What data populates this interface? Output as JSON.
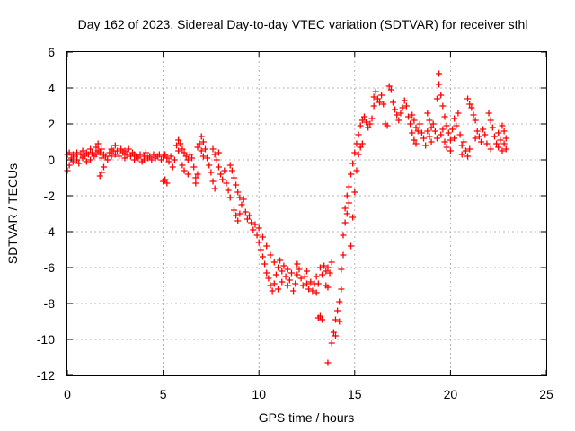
{
  "chart_data": {
    "type": "scatter",
    "title": "Day 162 of 2023, Sidereal Day-to-day VTEC variation (SDTVAR) for receiver sthl",
    "xlabel": "GPS time / hours",
    "ylabel": "SDTVAR / TECUs",
    "xlim": [
      0,
      25
    ],
    "ylim": [
      -12,
      6
    ],
    "xticks": [
      0,
      5,
      10,
      15,
      20,
      25
    ],
    "xtick_labels": [
      "0",
      "5",
      "10",
      "15",
      "20",
      "25"
    ],
    "yticks": [
      -12,
      -10,
      -8,
      -6,
      -4,
      -2,
      0,
      2,
      4,
      6
    ],
    "ytick_labels": [
      "-12",
      "-10",
      "-8",
      "-6",
      "-4",
      "-2",
      "0",
      "2",
      "4",
      "6"
    ],
    "grid": true,
    "marker": "+",
    "color": "#ff0000",
    "series": [
      {
        "name": "sthl",
        "points": [
          [
            0.0,
            0.3
          ],
          [
            0.0,
            -0.6
          ],
          [
            0.1,
            0.4
          ],
          [
            0.1,
            -0.3
          ],
          [
            0.2,
            0.1
          ],
          [
            0.3,
            0.3
          ],
          [
            0.3,
            -0.1
          ],
          [
            0.4,
            0.2
          ],
          [
            0.5,
            0.4
          ],
          [
            0.5,
            0.0
          ],
          [
            0.6,
            -0.2
          ],
          [
            0.7,
            0.3
          ],
          [
            0.8,
            0.1
          ],
          [
            0.8,
            0.5
          ],
          [
            0.9,
            0.2
          ],
          [
            1.0,
            0.4
          ],
          [
            1.0,
            -0.1
          ],
          [
            1.1,
            0.3
          ],
          [
            1.2,
            0.6
          ],
          [
            1.2,
            0.0
          ],
          [
            1.3,
            0.4
          ],
          [
            1.4,
            0.2
          ],
          [
            1.5,
            0.7
          ],
          [
            1.5,
            0.3
          ],
          [
            1.6,
            0.5
          ],
          [
            1.6,
            0.9
          ],
          [
            1.7,
            0.4
          ],
          [
            1.8,
            0.6
          ],
          [
            1.8,
            0.1
          ],
          [
            1.9,
            0.3
          ],
          [
            1.8,
            -0.7
          ],
          [
            1.9,
            -0.4
          ],
          [
            1.7,
            -0.9
          ],
          [
            2.0,
            0.2
          ],
          [
            2.1,
            0.0
          ],
          [
            2.2,
            0.4
          ],
          [
            2.3,
            0.6
          ],
          [
            2.3,
            0.2
          ],
          [
            2.4,
            0.5
          ],
          [
            2.5,
            0.3
          ],
          [
            2.5,
            0.8
          ],
          [
            2.6,
            0.5
          ],
          [
            2.7,
            0.2
          ],
          [
            2.8,
            0.6
          ],
          [
            2.9,
            0.4
          ],
          [
            3.0,
            0.5
          ],
          [
            3.0,
            0.1
          ],
          [
            3.1,
            0.3
          ],
          [
            3.2,
            0.6
          ],
          [
            3.3,
            0.2
          ],
          [
            3.4,
            0.4
          ],
          [
            3.5,
            0.0
          ],
          [
            3.5,
            0.3
          ],
          [
            3.6,
            0.2
          ],
          [
            3.7,
            0.1
          ],
          [
            3.8,
            0.3
          ],
          [
            3.9,
            -0.1
          ],
          [
            4.0,
            0.2
          ],
          [
            4.0,
            0.0
          ],
          [
            4.1,
            0.4
          ],
          [
            4.2,
            0.1
          ],
          [
            4.3,
            0.2
          ],
          [
            4.4,
            0.0
          ],
          [
            4.5,
            0.3
          ],
          [
            4.6,
            0.1
          ],
          [
            4.7,
            0.2
          ],
          [
            4.8,
            0.3
          ],
          [
            4.9,
            0.0
          ],
          [
            5.0,
            0.2
          ],
          [
            5.1,
            0.3
          ],
          [
            5.2,
            0.1
          ],
          [
            5.3,
            -0.1
          ],
          [
            5.4,
            0.2
          ],
          [
            5.0,
            -1.2
          ],
          [
            5.1,
            -1.1
          ],
          [
            5.2,
            -1.3
          ],
          [
            5.5,
            -0.4
          ],
          [
            5.6,
            0.0
          ],
          [
            5.7,
            0.8
          ],
          [
            5.8,
            1.1
          ],
          [
            5.8,
            0.5
          ],
          [
            5.9,
            0.9
          ],
          [
            6.0,
            0.6
          ],
          [
            6.0,
            -0.3
          ],
          [
            6.1,
            0.4
          ],
          [
            6.1,
            -0.6
          ],
          [
            6.2,
            0.2
          ],
          [
            6.3,
            0.0
          ],
          [
            6.3,
            -0.8
          ],
          [
            6.4,
            0.3
          ],
          [
            6.5,
            0.1
          ],
          [
            6.6,
            -0.4
          ],
          [
            6.7,
            -1.0
          ],
          [
            6.7,
            -1.3
          ],
          [
            6.8,
            -0.8
          ],
          [
            6.8,
            0.7
          ],
          [
            6.9,
            0.9
          ],
          [
            7.0,
            1.3
          ],
          [
            7.0,
            0.5
          ],
          [
            7.1,
            1.0
          ],
          [
            7.1,
            0.2
          ],
          [
            7.2,
            0.6
          ],
          [
            7.3,
            0.1
          ],
          [
            7.4,
            -0.3
          ],
          [
            7.5,
            -0.7
          ],
          [
            7.6,
            -1.2
          ],
          [
            7.7,
            -1.6
          ],
          [
            7.6,
            0.6
          ],
          [
            7.7,
            0.3
          ],
          [
            7.8,
            0.0
          ],
          [
            7.9,
            -0.4
          ],
          [
            7.9,
            0.4
          ],
          [
            8.0,
            -0.8
          ],
          [
            8.1,
            -1.1
          ],
          [
            8.2,
            -0.6
          ],
          [
            8.3,
            -1.3
          ],
          [
            8.4,
            -1.7
          ],
          [
            8.5,
            -2.1
          ],
          [
            8.5,
            -0.3
          ],
          [
            8.6,
            -0.6
          ],
          [
            8.7,
            -1.0
          ],
          [
            8.8,
            -1.4
          ],
          [
            8.9,
            -1.8
          ],
          [
            9.0,
            -2.1
          ],
          [
            9.1,
            -2.5
          ],
          [
            9.2,
            -2.2
          ],
          [
            9.3,
            -2.9
          ],
          [
            9.4,
            -3.3
          ],
          [
            9.5,
            -3.1
          ],
          [
            9.6,
            -3.5
          ],
          [
            8.7,
            -2.8
          ],
          [
            8.8,
            -3.1
          ],
          [
            8.9,
            -3.4
          ],
          [
            9.0,
            -3.0
          ],
          [
            9.7,
            -3.9
          ],
          [
            9.8,
            -3.6
          ],
          [
            9.9,
            -4.2
          ],
          [
            10.0,
            -4.6
          ],
          [
            10.0,
            -3.8
          ],
          [
            10.1,
            -5.0
          ],
          [
            10.2,
            -5.4
          ],
          [
            10.2,
            -4.3
          ],
          [
            10.3,
            -5.8
          ],
          [
            10.4,
            -6.3
          ],
          [
            10.4,
            -4.8
          ],
          [
            10.5,
            -6.6
          ],
          [
            10.6,
            -7.0
          ],
          [
            10.6,
            -5.3
          ],
          [
            10.7,
            -7.3
          ],
          [
            10.8,
            -6.9
          ],
          [
            10.8,
            -5.7
          ],
          [
            10.9,
            -6.4
          ],
          [
            11.0,
            -6.0
          ],
          [
            11.0,
            -7.2
          ],
          [
            11.1,
            -5.6
          ],
          [
            11.2,
            -6.2
          ],
          [
            11.2,
            -6.8
          ],
          [
            11.3,
            -5.9
          ],
          [
            11.4,
            -6.5
          ],
          [
            11.5,
            -6.1
          ],
          [
            11.5,
            -7.0
          ],
          [
            11.6,
            -6.7
          ],
          [
            11.7,
            -6.3
          ],
          [
            11.8,
            -7.3
          ],
          [
            11.9,
            -6.9
          ],
          [
            12.0,
            -6.4
          ],
          [
            12.0,
            -5.8
          ],
          [
            12.1,
            -6.1
          ],
          [
            12.2,
            -6.6
          ],
          [
            12.3,
            -7.0
          ],
          [
            12.4,
            -6.5
          ],
          [
            12.5,
            -6.9
          ],
          [
            12.5,
            -6.2
          ],
          [
            12.6,
            -7.2
          ],
          [
            12.7,
            -6.8
          ],
          [
            12.8,
            -7.3
          ],
          [
            12.9,
            -6.9
          ],
          [
            13.0,
            -6.5
          ],
          [
            13.0,
            -7.4
          ],
          [
            13.1,
            -6.9
          ],
          [
            13.1,
            -8.8
          ],
          [
            13.2,
            -8.7
          ],
          [
            13.3,
            -8.9
          ],
          [
            13.2,
            -6.0
          ],
          [
            13.3,
            -6.4
          ],
          [
            13.4,
            -5.9
          ],
          [
            13.5,
            -6.2
          ],
          [
            13.6,
            -6.0
          ],
          [
            13.7,
            -6.3
          ],
          [
            13.8,
            -5.7
          ],
          [
            13.5,
            -7.0
          ],
          [
            13.6,
            -7.1
          ],
          [
            13.6,
            -11.3
          ],
          [
            13.8,
            -10.2
          ],
          [
            13.9,
            -9.6
          ],
          [
            14.0,
            -8.9
          ],
          [
            14.0,
            -9.8
          ],
          [
            14.1,
            -8.4
          ],
          [
            14.2,
            -7.9
          ],
          [
            14.2,
            -9.0
          ],
          [
            14.3,
            -7.2
          ],
          [
            14.3,
            -6.1
          ],
          [
            14.4,
            -5.3
          ],
          [
            14.4,
            -4.2
          ],
          [
            14.5,
            -3.5
          ],
          [
            14.5,
            -2.7
          ],
          [
            14.6,
            -2.0
          ],
          [
            14.6,
            -3.0
          ],
          [
            14.7,
            -1.5
          ],
          [
            14.7,
            -2.4
          ],
          [
            14.8,
            -0.8
          ],
          [
            14.8,
            -4.8
          ],
          [
            14.9,
            -0.2
          ],
          [
            14.9,
            -3.2
          ],
          [
            15.0,
            0.4
          ],
          [
            15.0,
            -1.8
          ],
          [
            15.1,
            0.9
          ],
          [
            15.1,
            -0.6
          ],
          [
            15.2,
            1.4
          ],
          [
            15.2,
            0.3
          ],
          [
            15.3,
            1.9
          ],
          [
            15.3,
            0.7
          ],
          [
            15.4,
            2.2
          ],
          [
            15.4,
            0.9
          ],
          [
            15.5,
            2.4
          ],
          [
            15.6,
            2.1
          ],
          [
            15.7,
            1.8
          ],
          [
            15.8,
            2.0
          ],
          [
            15.9,
            2.3
          ],
          [
            16.0,
            3.0
          ],
          [
            16.0,
            3.5
          ],
          [
            16.1,
            3.8
          ],
          [
            16.2,
            3.4
          ],
          [
            16.3,
            3.2
          ],
          [
            16.4,
            3.6
          ],
          [
            16.5,
            3.1
          ],
          [
            16.6,
            2.0
          ],
          [
            16.7,
            1.9
          ],
          [
            16.8,
            4.1
          ],
          [
            16.9,
            3.9
          ],
          [
            17.0,
            3.2
          ],
          [
            17.1,
            2.8
          ],
          [
            17.2,
            2.5
          ],
          [
            17.3,
            2.2
          ],
          [
            17.4,
            2.6
          ],
          [
            17.5,
            2.9
          ],
          [
            17.6,
            3.3
          ],
          [
            17.7,
            3.0
          ],
          [
            17.8,
            2.4
          ],
          [
            17.9,
            2.0
          ],
          [
            18.0,
            2.5
          ],
          [
            18.0,
            1.5
          ],
          [
            18.1,
            2.2
          ],
          [
            18.1,
            1.1
          ],
          [
            18.2,
            1.8
          ],
          [
            18.2,
            0.9
          ],
          [
            18.3,
            1.6
          ],
          [
            18.4,
            2.0
          ],
          [
            18.5,
            1.5
          ],
          [
            18.6,
            1.2
          ],
          [
            18.7,
            0.8
          ],
          [
            18.8,
            1.6
          ],
          [
            18.8,
            2.6
          ],
          [
            18.9,
            2.2
          ],
          [
            18.9,
            1.3
          ],
          [
            19.0,
            1.8
          ],
          [
            19.0,
            1.0
          ],
          [
            19.1,
            2.0
          ],
          [
            19.2,
            1.6
          ],
          [
            19.3,
            3.4
          ],
          [
            19.3,
            1.2
          ],
          [
            19.4,
            4.8
          ],
          [
            19.4,
            4.2
          ],
          [
            19.5,
            3.6
          ],
          [
            19.5,
            1.4
          ],
          [
            19.6,
            3.0
          ],
          [
            19.6,
            1.7
          ],
          [
            19.7,
            2.4
          ],
          [
            19.7,
            1.0
          ],
          [
            19.8,
            1.9
          ],
          [
            19.8,
            0.7
          ],
          [
            19.9,
            1.5
          ],
          [
            20.0,
            1.1
          ],
          [
            20.0,
            0.5
          ],
          [
            20.1,
            1.7
          ],
          [
            20.2,
            1.2
          ],
          [
            20.2,
            2.3
          ],
          [
            20.3,
            1.9
          ],
          [
            20.4,
            2.6
          ],
          [
            20.5,
            1.4
          ],
          [
            20.6,
            0.8
          ],
          [
            20.6,
            0.3
          ],
          [
            20.7,
            1.0
          ],
          [
            20.8,
            0.5
          ],
          [
            20.9,
            0.2
          ],
          [
            20.9,
            3.4
          ],
          [
            21.0,
            3.1
          ],
          [
            21.0,
            0.6
          ],
          [
            21.1,
            2.9
          ],
          [
            21.2,
            2.5
          ],
          [
            21.3,
            2.2
          ],
          [
            21.3,
            1.2
          ],
          [
            21.4,
            1.6
          ],
          [
            21.5,
            1.3
          ],
          [
            21.6,
            1.0
          ],
          [
            21.7,
            1.7
          ],
          [
            21.8,
            1.4
          ],
          [
            21.9,
            0.9
          ],
          [
            22.0,
            2.6
          ],
          [
            22.1,
            2.2
          ],
          [
            22.1,
            0.6
          ],
          [
            22.2,
            1.8
          ],
          [
            22.3,
            1.3
          ],
          [
            22.4,
            0.9
          ],
          [
            22.5,
            1.5
          ],
          [
            22.5,
            0.7
          ],
          [
            22.6,
            1.1
          ],
          [
            22.7,
            0.5
          ],
          [
            22.8,
            1.6
          ],
          [
            22.9,
            1.2
          ],
          [
            22.9,
            0.6
          ],
          [
            22.7,
            1.9
          ],
          [
            22.8,
            0.9
          ]
        ]
      }
    ]
  }
}
